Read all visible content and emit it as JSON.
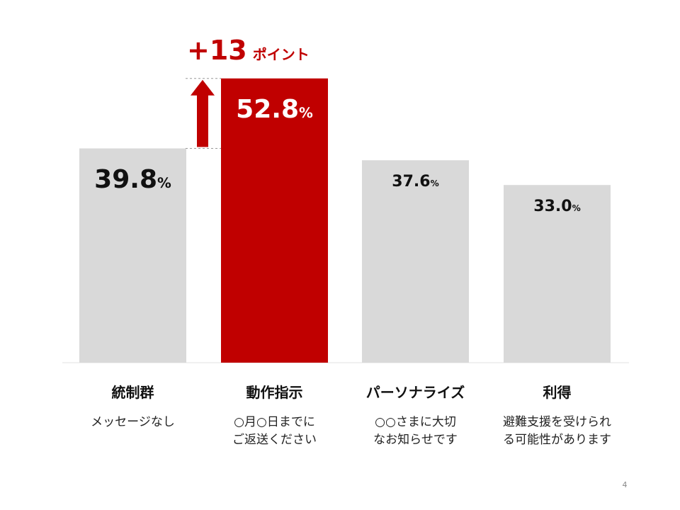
{
  "colors": {
    "highlight": "#C00000",
    "neutral": "#D9D9D9",
    "text_dark": "#111111",
    "text_on_highlight": "#FFFFFF"
  },
  "chart_data": {
    "type": "bar",
    "categories": [
      "統制群",
      "動作指示",
      "パーソナライズ",
      "利得"
    ],
    "subtitles": [
      "メッセージなし",
      "○月○日までに\nご返送ください",
      "○○さまに大切\nなお知らせです",
      "避難支援を受けられ\nる可能性があります"
    ],
    "values": [
      39.8,
      52.8,
      37.6,
      33.0
    ],
    "value_labels": [
      "39.8",
      "52.8",
      "37.6",
      "33.0"
    ],
    "unit": "%",
    "highlight_index": 1,
    "ylim": [
      0,
      60
    ],
    "grid": false,
    "legend": "none",
    "annotation": {
      "value": "+13",
      "unit": "ポイント"
    }
  },
  "page_number": "4"
}
